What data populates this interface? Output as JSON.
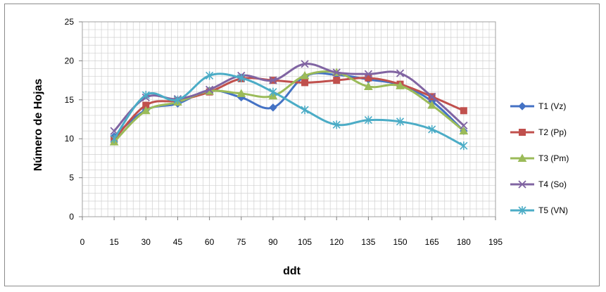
{
  "chart_data": {
    "type": "line",
    "title": "",
    "xlabel": "ddt",
    "ylabel": "Número de Hojas",
    "xlim": [
      0,
      195
    ],
    "ylim": [
      0,
      25
    ],
    "xticks": [
      0,
      15,
      30,
      45,
      60,
      75,
      90,
      105,
      120,
      135,
      150,
      165,
      180,
      195
    ],
    "yticks": [
      0,
      5,
      10,
      15,
      20,
      25
    ],
    "grid": true,
    "legend_position": "right",
    "x": [
      15,
      30,
      45,
      60,
      75,
      90,
      105,
      120,
      135,
      150,
      165,
      180
    ],
    "series": [
      {
        "name": "T1 (Vz)",
        "color": "#4472C4",
        "marker": "diamond",
        "values": [
          10.3,
          13.7,
          14.5,
          16.2,
          15.3,
          14.0,
          18.0,
          18.2,
          17.6,
          16.9,
          14.8,
          11.0
        ]
      },
      {
        "name": "T2 (Pp)",
        "color": "#C0504D",
        "marker": "square",
        "values": [
          9.9,
          14.3,
          14.9,
          16.0,
          17.7,
          17.5,
          17.2,
          17.5,
          17.8,
          17.0,
          15.4,
          13.6
        ]
      },
      {
        "name": "T3 (Pm)",
        "color": "#9BBB59",
        "marker": "triangle",
        "values": [
          9.6,
          13.6,
          14.7,
          16.1,
          15.8,
          15.5,
          18.1,
          18.5,
          16.7,
          16.8,
          14.3,
          11.0
        ]
      },
      {
        "name": "T4 (So)",
        "color": "#8064A2",
        "marker": "x",
        "values": [
          11.0,
          15.3,
          15.1,
          16.3,
          18.1,
          17.5,
          19.6,
          18.5,
          18.3,
          18.4,
          15.4,
          11.7
        ]
      },
      {
        "name": "T5 (VN)",
        "color": "#4BACC6",
        "marker": "asterisk",
        "values": [
          10.0,
          15.6,
          15.0,
          18.1,
          17.8,
          16.0,
          13.7,
          11.8,
          12.4,
          12.2,
          11.2,
          9.1
        ]
      }
    ]
  }
}
